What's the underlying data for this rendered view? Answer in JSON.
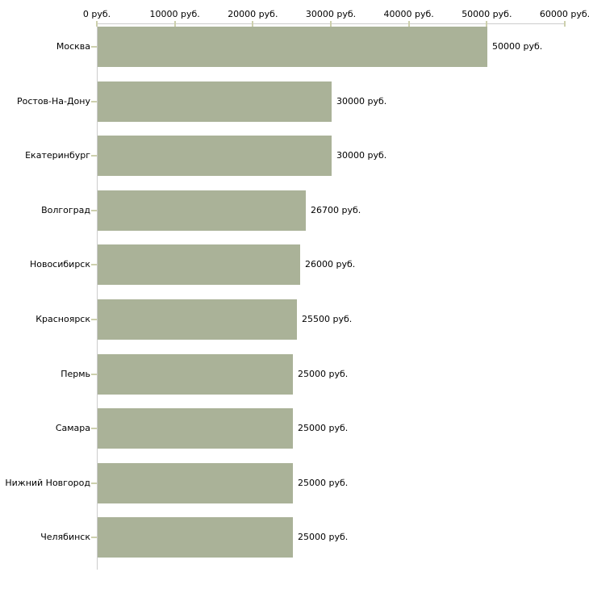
{
  "chart_data": {
    "type": "bar",
    "orientation": "horizontal",
    "title": "",
    "categories": [
      "Москва",
      "Ростов-На-Дону",
      "Екатеринбург",
      "Волгоград",
      "Новосибирск",
      "Красноярск",
      "Пермь",
      "Самара",
      "Нижний Новгород",
      "Челябинск"
    ],
    "values": [
      50000,
      30000,
      30000,
      26700,
      26000,
      25500,
      25000,
      25000,
      25000,
      25000
    ],
    "value_labels": [
      "50000 руб.",
      "30000 руб.",
      "30000 руб.",
      "26700 руб.",
      "26000 руб.",
      "25500 руб.",
      "25000 руб.",
      "25000 руб.",
      "25000 руб.",
      "25000 руб."
    ],
    "x_axis": {
      "max": 60000,
      "min": 0,
      "unit": "руб.",
      "ticks": [
        0,
        10000,
        20000,
        30000,
        40000,
        50000,
        60000
      ],
      "tick_labels": [
        "0 руб.",
        "10000 руб.",
        "20000 руб.",
        "30000 руб.",
        "40000 руб.",
        "50000 руб.",
        "60000 руб."
      ]
    },
    "ylabel": "",
    "xlabel": "",
    "grid": false,
    "legend": false,
    "colors": {
      "bar": "#aab298",
      "axis_line": "#cccccc",
      "tick_mark": "#cdd0ad",
      "text": "#000000",
      "background": "#ffffff"
    }
  }
}
